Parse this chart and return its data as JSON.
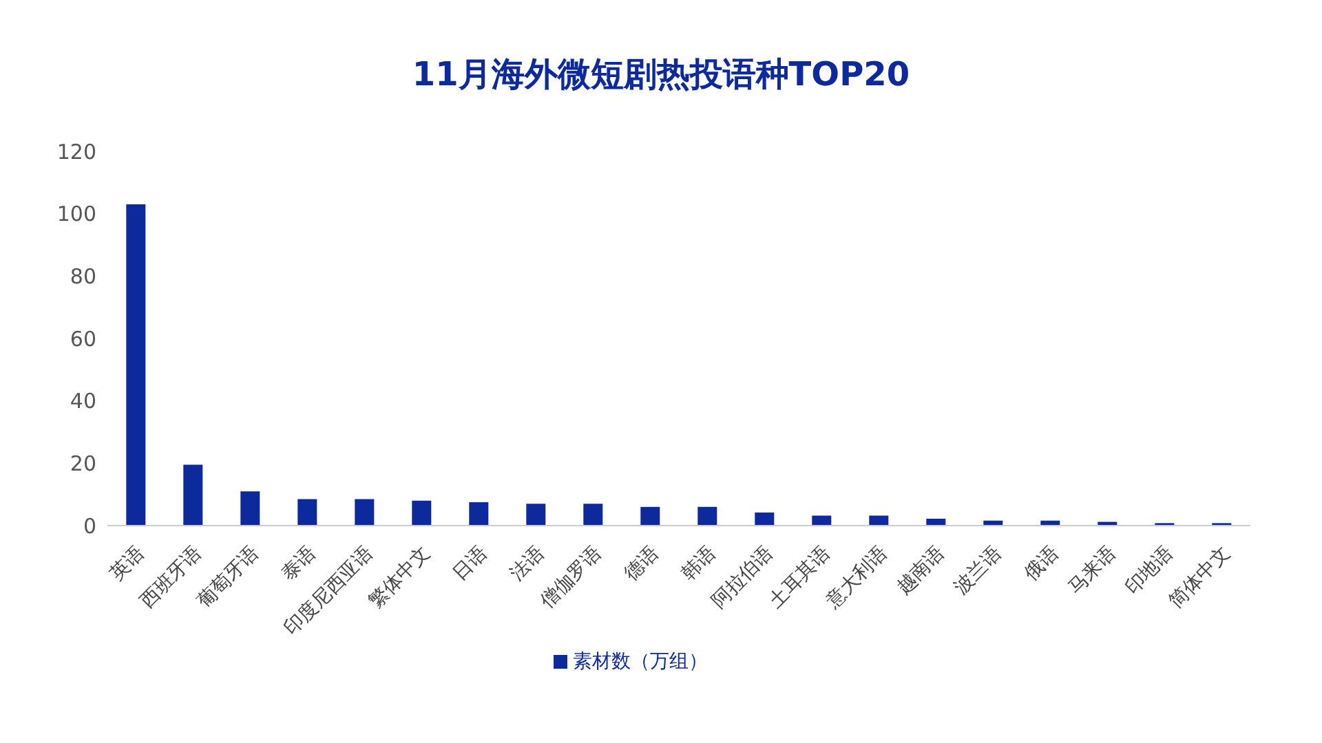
{
  "chart_data": {
    "type": "bar",
    "title": "11月海外微短剧热投语种TOP20",
    "categories": [
      "英语",
      "西班牙语",
      "葡萄牙语",
      "泰语",
      "印度尼西亚语",
      "繁体中文",
      "日语",
      "法语",
      "僧伽罗语",
      "德语",
      "韩语",
      "阿拉伯语",
      "土耳其语",
      "意大利语",
      "越南语",
      "波兰语",
      "俄语",
      "马来语",
      "印地语",
      "简体中文"
    ],
    "series": [
      {
        "name": "素材数（万组）",
        "color": "#0d2a9c",
        "values": [
          103,
          19.5,
          11,
          8.5,
          8.5,
          8,
          7.5,
          7,
          7,
          6,
          6,
          4.2,
          3.2,
          3.2,
          2.2,
          1.6,
          1.6,
          1.2,
          0.8,
          0.8
        ]
      }
    ],
    "ylim": [
      0,
      120
    ],
    "yticks": [
      0,
      20,
      40,
      60,
      80,
      100,
      120
    ],
    "grid": false,
    "legend": "bottom"
  }
}
